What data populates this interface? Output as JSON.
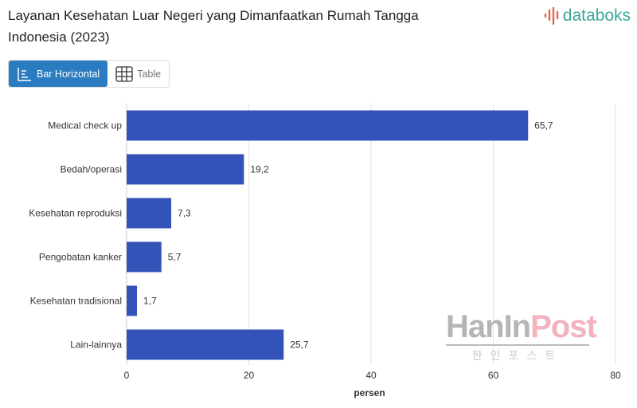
{
  "title": "Layanan Kesehatan Luar Negeri yang Dimanfaatkan Rumah Tangga Indonesia (2023)",
  "logo": "databoks",
  "view_toggle": {
    "bar_label": "Bar Horizontal",
    "table_label": "Table",
    "active": "Bar Horizontal"
  },
  "watermark": {
    "part1": "HanIn",
    "part2": "Post",
    "korean": "한인포스트"
  },
  "colors": {
    "bar": "#3353b8",
    "active_button": "#2a7bbf",
    "logo": "#3aa89a"
  },
  "chart_data": {
    "type": "bar",
    "orientation": "horizontal",
    "categories": [
      "Medical check up",
      "Bedah/operasi",
      "Kesehatan reproduksi",
      "Pengobatan kanker",
      "Kesehatan tradisional",
      "Lain-lainnya"
    ],
    "values": [
      65.7,
      19.2,
      7.3,
      5.7,
      1.7,
      25.7
    ],
    "data_labels": [
      "65,7",
      "19,2",
      "7,3",
      "5,7",
      "1,7",
      "25,7"
    ],
    "xlabel": "persen",
    "ylabel": "",
    "xlim": [
      0,
      80
    ],
    "xticks": [
      0,
      20,
      40,
      60,
      80
    ],
    "grid": true
  }
}
